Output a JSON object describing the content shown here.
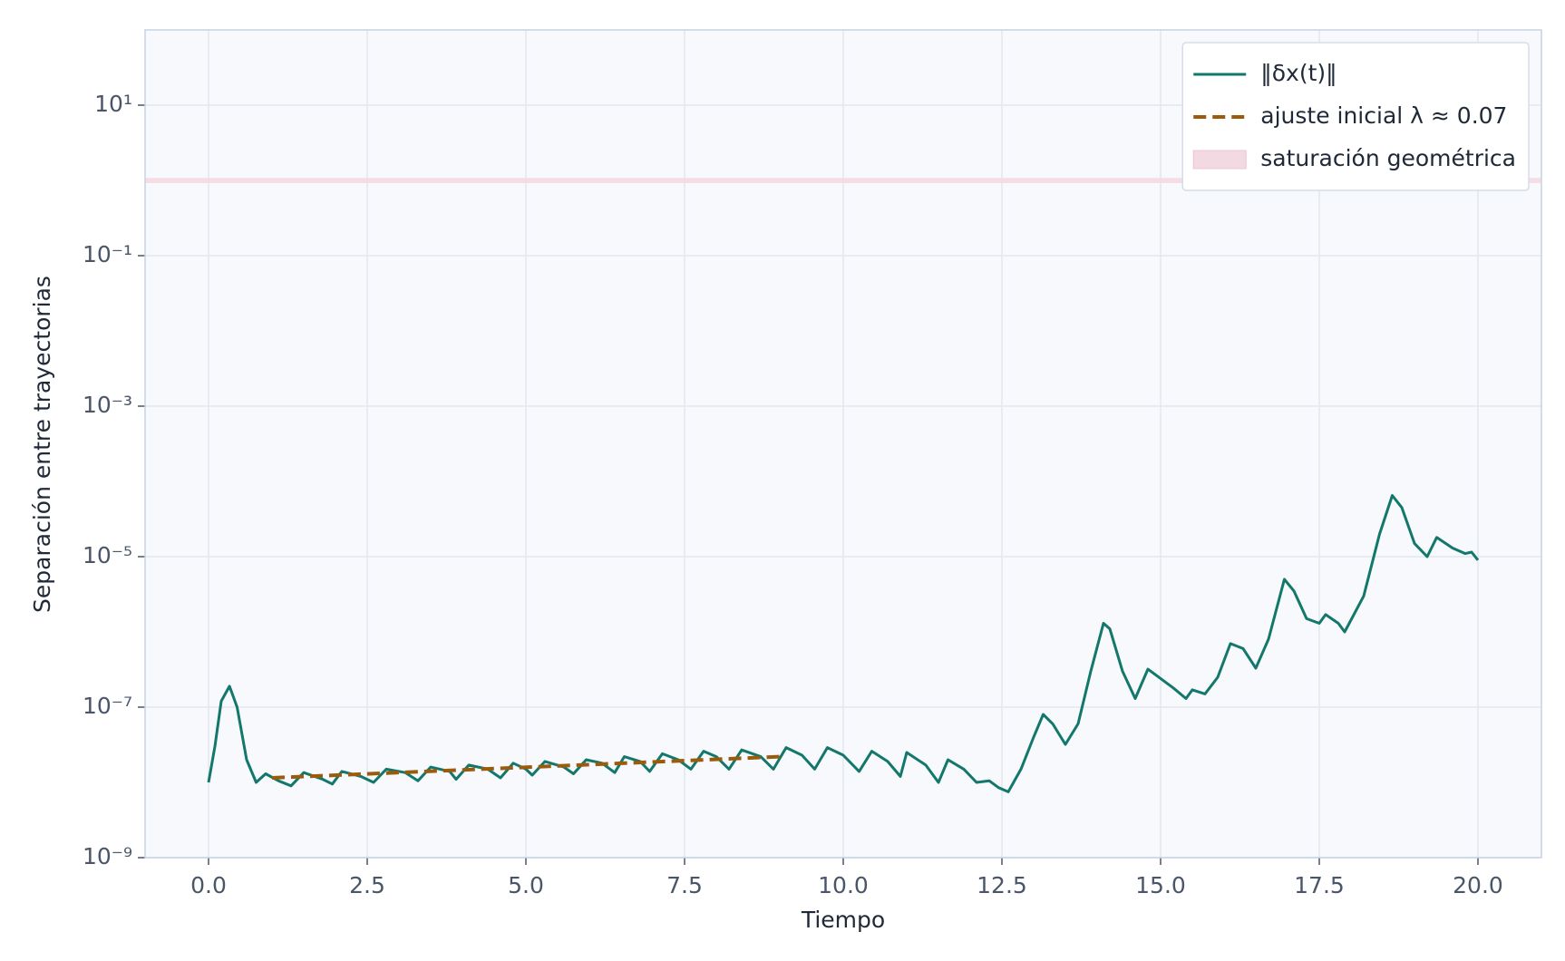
{
  "chart_data": {
    "type": "line",
    "xlabel": "Tiempo",
    "ylabel": "Separación entre trayectorias",
    "xlim": [
      -1,
      21
    ],
    "ylim": [
      1e-09,
      100
    ],
    "yscale": "log",
    "grid": true,
    "legend": "upper right",
    "xticks": [
      {
        "value": 0,
        "label": "0.0"
      },
      2.5,
      {
        "value": 5,
        "label": "5.0"
      },
      7.5,
      {
        "value": 10,
        "label": "10.0"
      },
      12.5,
      {
        "value": 15,
        "label": "15.0"
      },
      17.5,
      {
        "value": 20,
        "label": "20.0"
      }
    ],
    "yticks": [
      {
        "value": 1e-09,
        "label": "10⁻⁹"
      },
      {
        "value": 1e-07,
        "label": "10⁻⁷"
      },
      {
        "value": 1e-05,
        "label": "10⁻⁵"
      },
      {
        "value": 0.001,
        "label": "10⁻³"
      },
      {
        "value": 0.1,
        "label": "10⁻¹"
      },
      {
        "value": 10,
        "label": "10¹"
      }
    ],
    "series": [
      {
        "name": "‖δx(t)‖",
        "color": "#13776b",
        "dash": false,
        "x": [
          0,
          0.1,
          0.2,
          0.33,
          0.45,
          0.6,
          0.75,
          0.9,
          1.1,
          1.3,
          1.5,
          1.8,
          1.95,
          2.1,
          2.4,
          2.6,
          2.8,
          3.1,
          3.3,
          3.5,
          3.8,
          3.9,
          4.1,
          4.4,
          4.6,
          4.8,
          5.0,
          5.1,
          5.3,
          5.6,
          5.75,
          5.95,
          6.2,
          6.4,
          6.55,
          6.8,
          6.95,
          7.15,
          7.4,
          7.6,
          7.8,
          8.0,
          8.2,
          8.4,
          8.7,
          8.9,
          9.1,
          9.35,
          9.55,
          9.75,
          10.0,
          10.25,
          10.45,
          10.7,
          10.9,
          11.0,
          11.3,
          11.5,
          11.65,
          11.9,
          12.1,
          12.3,
          12.45,
          12.6,
          12.8,
          13.0,
          13.15,
          13.3,
          13.5,
          13.7,
          13.9,
          14.1,
          14.2,
          14.4,
          14.6,
          14.8,
          15.0,
          15.2,
          15.4,
          15.5,
          15.7,
          15.9,
          16.1,
          16.3,
          16.5,
          16.7,
          16.95,
          17.1,
          17.3,
          17.5,
          17.6,
          17.8,
          17.9,
          18.2,
          18.45,
          18.65,
          18.8,
          19.0,
          19.2,
          19.35,
          19.6,
          19.8,
          19.9,
          20.0
        ],
        "values": [
          1e-08,
          3e-08,
          1.2e-07,
          1.9e-07,
          1e-07,
          2e-08,
          1e-08,
          1.3e-08,
          1.05e-08,
          9e-09,
          1.35e-08,
          1.1e-08,
          9.5e-09,
          1.4e-08,
          1.2e-08,
          1e-08,
          1.5e-08,
          1.35e-08,
          1.05e-08,
          1.6e-08,
          1.4e-08,
          1.1e-08,
          1.7e-08,
          1.5e-08,
          1.15e-08,
          1.8e-08,
          1.5e-08,
          1.25e-08,
          1.9e-08,
          1.6e-08,
          1.3e-08,
          2e-08,
          1.8e-08,
          1.35e-08,
          2.2e-08,
          1.9e-08,
          1.4e-08,
          2.4e-08,
          2e-08,
          1.5e-08,
          2.6e-08,
          2.2e-08,
          1.5e-08,
          2.7e-08,
          2.2e-08,
          1.5e-08,
          2.9e-08,
          2.3e-08,
          1.5e-08,
          2.9e-08,
          2.3e-08,
          1.4e-08,
          2.6e-08,
          1.9e-08,
          1.2e-08,
          2.5e-08,
          1.7e-08,
          1e-08,
          2e-08,
          1.5e-08,
          1e-08,
          1.05e-08,
          8.5e-09,
          7.5e-09,
          1.5e-08,
          4e-08,
          8e-08,
          6e-08,
          3.2e-08,
          6e-08,
          3e-07,
          1.3e-06,
          1.1e-06,
          3e-07,
          1.3e-07,
          3.2e-07,
          2.4e-07,
          1.8e-07,
          1.3e-07,
          1.7e-07,
          1.5e-07,
          2.5e-07,
          7e-07,
          6e-07,
          3.3e-07,
          8e-07,
          5e-06,
          3.5e-06,
          1.5e-06,
          1.3e-06,
          1.7e-06,
          1.3e-06,
          1e-06,
          3e-06,
          2e-05,
          6.5e-05,
          4.5e-05,
          1.5e-05,
          1e-05,
          1.8e-05,
          1.3e-05,
          1.1e-05,
          1.15e-05,
          9e-06
        ]
      },
      {
        "name": "ajuste inicial λ ≈ 0.07",
        "color": "#9a5b0c",
        "dash": true,
        "x": [
          1,
          9
        ],
        "values": [
          1.15e-08,
          2.2e-08
        ]
      }
    ],
    "bands": [
      {
        "name": "saturación geométrica",
        "color": "#f3d9e2",
        "y0": 0.92,
        "y1": 1.08
      }
    ]
  }
}
